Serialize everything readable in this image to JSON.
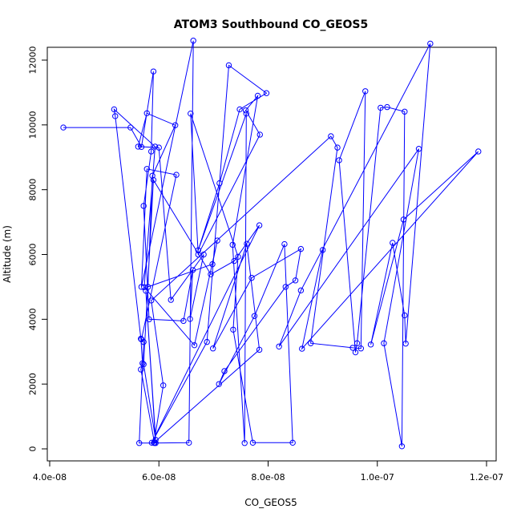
{
  "chart_data": {
    "type": "line",
    "title": "ATOM3 Southbound CO_GEOS5",
    "xlabel": "CO_GEOS5",
    "ylabel": "Altitude (m)",
    "xlim": [
      4e-08,
      1.2e-07
    ],
    "ylim": [
      0,
      12000
    ],
    "xticks": [
      4e-08,
      6e-08,
      8e-08,
      1e-07,
      1.2e-07
    ],
    "xtick_labels": [
      "4.0e-08",
      "6.0e-08",
      "8.0e-08",
      "1.0e-07",
      "1.2e-07"
    ],
    "yticks": [
      0,
      2000,
      4000,
      6000,
      8000,
      10000,
      12000
    ],
    "ytick_labels": [
      "0",
      "2000",
      "4000",
      "6000",
      "8000",
      "10000",
      "12000"
    ],
    "grid": false,
    "marker": "open-circle",
    "color": "#0000ff",
    "series": [
      {
        "x": [
          4.25e-08,
          5.48e-08,
          5.68e-08,
          5.9e-08,
          5.86e-08,
          5.72e-08,
          5.82e-08,
          6.45e-08,
          6.62e-08,
          6.57e-08,
          6.82e-08,
          6.22e-08,
          6e-08,
          5.62e-08,
          5.78e-08,
          6.3e-08,
          5.88e-08,
          5.8e-08,
          6.98e-08,
          7.07e-08,
          6.65e-08,
          5.73e-08,
          5.93e-08,
          5.18e-08,
          5.2e-08,
          5.67e-08,
          5.7e-08,
          5.67e-08,
          5.92e-08,
          6.55e-08,
          6.63e-08,
          5.68e-08,
          5.78e-08,
          6.32e-08,
          5.68e-08,
          5.72e-08,
          5.64e-08,
          5.94e-08,
          5.76e-08,
          5.94e-08,
          5.72e-08,
          5.9e-08,
          6.95e-08,
          7.38e-08,
          7.84e-08,
          5.87e-08,
          6.88e-08,
          7.28e-08,
          7.97e-08,
          7.48e-08,
          7.11e-08,
          6.72e-08,
          7.6e-08,
          7.57e-08,
          7.35e-08,
          7.81e-08,
          7.59e-08,
          7.85e-08,
          6.72e-08,
          6.58e-08,
          7.45e-08,
          7.36e-08,
          7.72e-08,
          8.45e-08,
          8.3e-08,
          7.75e-08,
          7.1e-08,
          7.2e-08,
          8.32e-08,
          8.5e-08,
          8.6e-08,
          7.7e-08,
          6.99e-08,
          7.61e-08,
          7.84e-08,
          5.91e-08,
          6.08e-08,
          5.86e-08,
          9.15e-08,
          9.27e-08,
          8.78e-08,
          9.55e-08,
          9.7e-08,
          9.78e-08,
          9.3e-08,
          9.6e-08,
          9.63e-08,
          1.006e-07,
          1.018e-07,
          1.05e-07,
          1.045e-07,
          1.012e-07,
          1.076e-07,
          8.2e-08,
          8.6e-08,
          1.097e-07,
          1.052e-07,
          1.05e-07,
          1.028e-07,
          9.88e-08,
          1.048e-07,
          1.185e-07,
          8.62e-08,
          9e-08
        ],
        "y": [
          9920,
          9920,
          9320,
          11650,
          9180,
          7500,
          4000,
          3950,
          5520,
          4010,
          6000,
          4600,
          9300,
          9330,
          10360,
          9990,
          8430,
          5000,
          5700,
          6430,
          3200,
          4990,
          9330,
          10480,
          10270,
          3400,
          2640,
          2450,
          180,
          190,
          12600,
          5000,
          8640,
          8460,
          3380,
          3300,
          180,
          180,
          4880,
          280,
          2610,
          8300,
          5390,
          5800,
          6900,
          190,
          3300,
          11840,
          10980,
          10480,
          8200,
          6130,
          10350,
          180,
          6300,
          10900,
          10450,
          9700,
          6000,
          10350,
          5930,
          3680,
          190,
          190,
          6320,
          4100,
          2000,
          2400,
          5000,
          5200,
          6170,
          5280,
          3100,
          6330,
          3060,
          190,
          1960,
          4580,
          9650,
          9300,
          3260,
          3120,
          3100,
          11040,
          8910,
          2980,
          3260,
          10530,
          10550,
          10410,
          80,
          3260,
          9260,
          3160,
          4890,
          12510,
          3250,
          4120,
          6360,
          3220,
          7080,
          9180,
          3090,
          6140
        ]
      }
    ]
  }
}
